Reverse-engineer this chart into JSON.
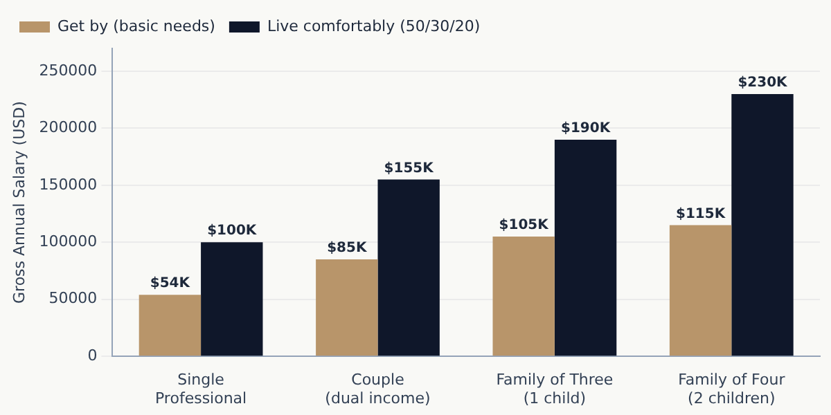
{
  "chart_data": {
    "type": "bar",
    "ylabel": "Gross Annual Salary (USD)",
    "categories": [
      "Single\nProfessional",
      "Couple\n(dual income)",
      "Family of Three\n(1 child)",
      "Family of Four\n(2 children)"
    ],
    "series": [
      {
        "name": "Get by (basic needs)",
        "color": "#b8956a",
        "values": [
          54000,
          85000,
          105000,
          115000
        ],
        "value_labels": [
          "$54K",
          "$85K",
          "$105K",
          "$115K"
        ]
      },
      {
        "name": "Live comfortably (50/30/20)",
        "color": "#0f172a",
        "values": [
          100000,
          155000,
          190000,
          230000
        ],
        "value_labels": [
          "$100K",
          "$155K",
          "$190K",
          "$230K"
        ]
      }
    ],
    "ylim": [
      0,
      270000
    ],
    "yticks": [
      0,
      50000,
      100000,
      150000,
      200000,
      250000
    ],
    "grid": "y",
    "legend": "top left"
  }
}
